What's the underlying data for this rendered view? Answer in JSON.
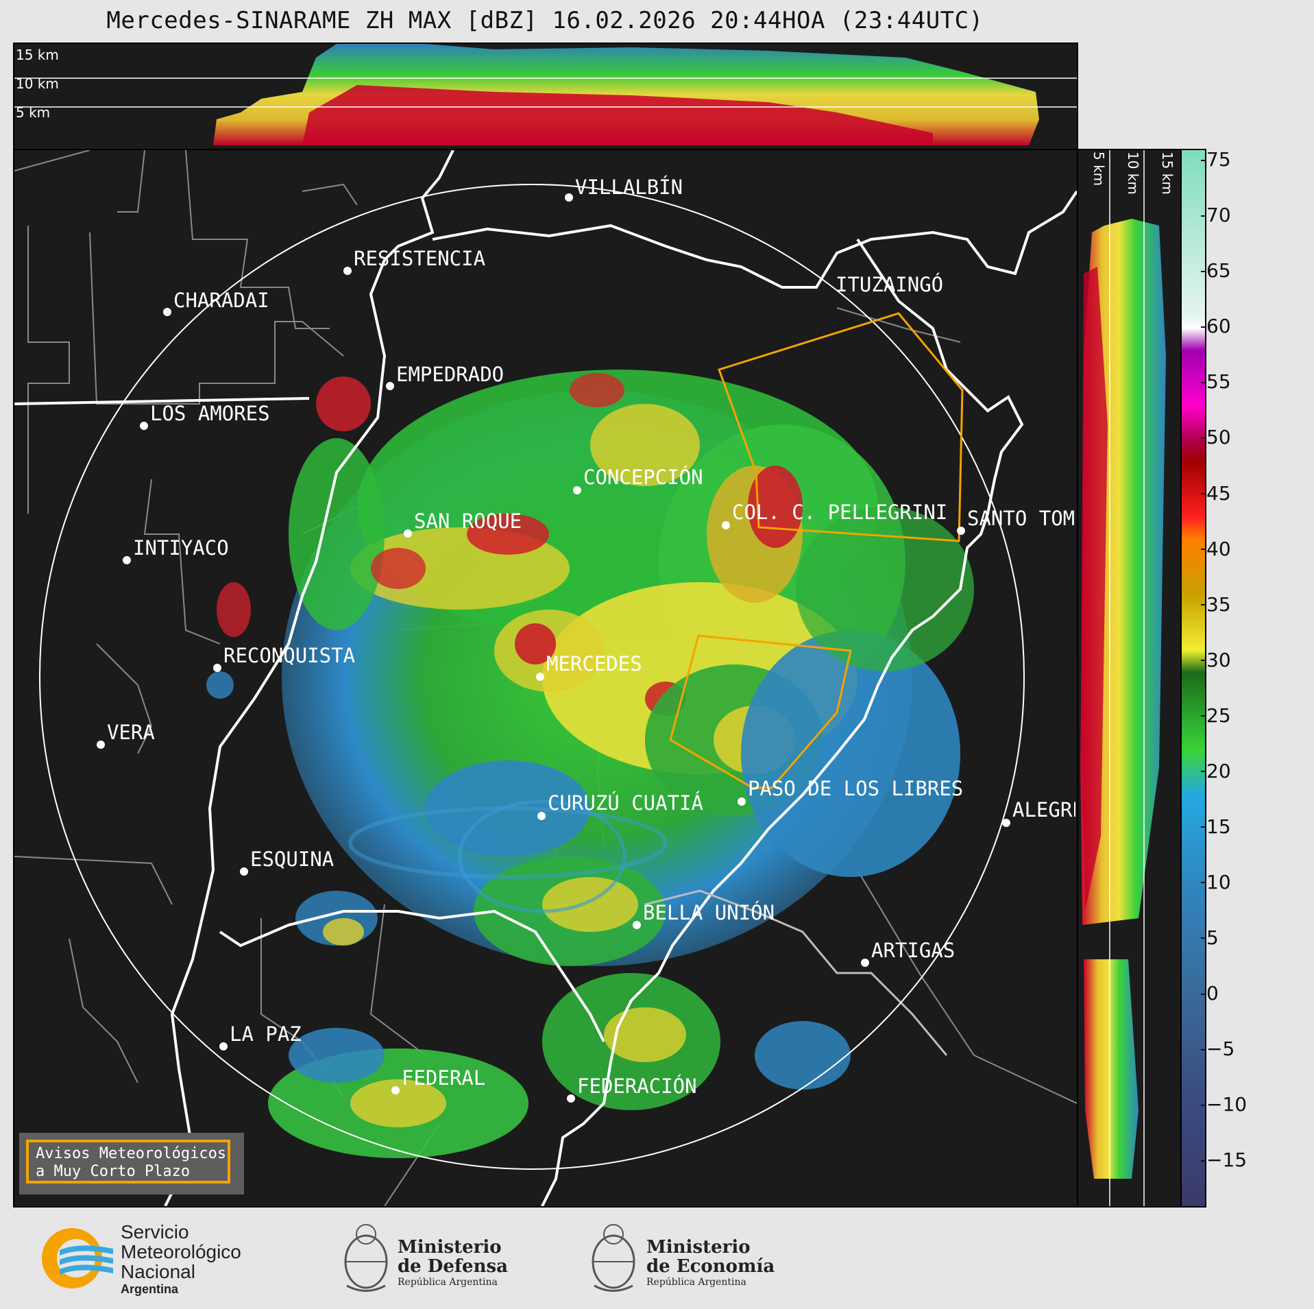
{
  "title": "Mercedes-SINARAME ZH MAX [dBZ] 16.02.2026 20:44HOA (23:44UTC)",
  "top_panel": {
    "altitude_labels": [
      "15 km",
      "10 km",
      "5 km"
    ]
  },
  "right_panel": {
    "altitude_labels": [
      "5 km",
      "10 km",
      "15 km"
    ]
  },
  "cities": [
    {
      "name": "VILLALBÍN"
    },
    {
      "name": "RESISTENCIA"
    },
    {
      "name": "CHARADAI"
    },
    {
      "name": "ITUZAINGÓ"
    },
    {
      "name": "EMPEDRADO"
    },
    {
      "name": "LOS AMORES"
    },
    {
      "name": "CONCEPCIÓN"
    },
    {
      "name": "SAN ROQUE"
    },
    {
      "name": "COL. C. PELLEGRINI"
    },
    {
      "name": "SANTO TOMÉ"
    },
    {
      "name": "INTIYACO"
    },
    {
      "name": "RECONQUISTA"
    },
    {
      "name": "MERCEDES"
    },
    {
      "name": "VERA"
    },
    {
      "name": "CURUZÚ CUATIÁ"
    },
    {
      "name": "PASO DE LOS LIBRES"
    },
    {
      "name": "ALEGRETE"
    },
    {
      "name": "ESQUINA"
    },
    {
      "name": "BELLA UNIÓN"
    },
    {
      "name": "ARTIGAS"
    },
    {
      "name": "LA PAZ"
    },
    {
      "name": "FEDERAL"
    },
    {
      "name": "FEDERACIÓN"
    }
  ],
  "colorbar": {
    "unit": "dBZ",
    "ticks": [
      "75",
      "70",
      "65",
      "60",
      "55",
      "50",
      "45",
      "40",
      "35",
      "30",
      "25",
      "20",
      "15",
      "10",
      "5",
      "0",
      "−5",
      "−10",
      "−15"
    ],
    "stops": [
      {
        "value": 76,
        "color": "#7fdcbf"
      },
      {
        "value": 61,
        "color": "#e6f5ee"
      },
      {
        "value": 60,
        "color": "#ffffff"
      },
      {
        "value": 58,
        "color": "#a000b0"
      },
      {
        "value": 53,
        "color": "#ff00cc"
      },
      {
        "value": 50,
        "color": "#b00050"
      },
      {
        "value": 48,
        "color": "#a00000"
      },
      {
        "value": 43,
        "color": "#ff2020"
      },
      {
        "value": 41,
        "color": "#ff7f00"
      },
      {
        "value": 36,
        "color": "#c8a000"
      },
      {
        "value": 31,
        "color": "#f0f030"
      },
      {
        "value": 29,
        "color": "#1a6b1a"
      },
      {
        "value": 22,
        "color": "#3ad33a"
      },
      {
        "value": 18,
        "color": "#26a8e0"
      },
      {
        "value": 10,
        "color": "#2f86c0"
      },
      {
        "value": 0,
        "color": "#3a6a98"
      },
      {
        "value": -10,
        "color": "#3a4a80"
      },
      {
        "value": -19,
        "color": "#3a3a6a"
      }
    ]
  },
  "warning_box": {
    "line1": "Avisos Meteorológicos",
    "line2": "a Muy Corto Plazo",
    "border_color": "#f5a300"
  },
  "logos": {
    "smn": {
      "line1": "Servicio",
      "line2": "Meteorológico",
      "line3": "Nacional",
      "line4": "Argentina"
    },
    "defensa": {
      "line1": "Ministerio",
      "line2": "de Defensa",
      "line3": "República Argentina"
    },
    "economia": {
      "line1": "Ministerio",
      "line2": "de Economía",
      "line3": "República Argentina"
    }
  },
  "colors": {
    "warning_polygon": "#f5a300",
    "border": "#ffffff",
    "province": "#8a8a8a",
    "map_bg": "#1b1b1b"
  }
}
